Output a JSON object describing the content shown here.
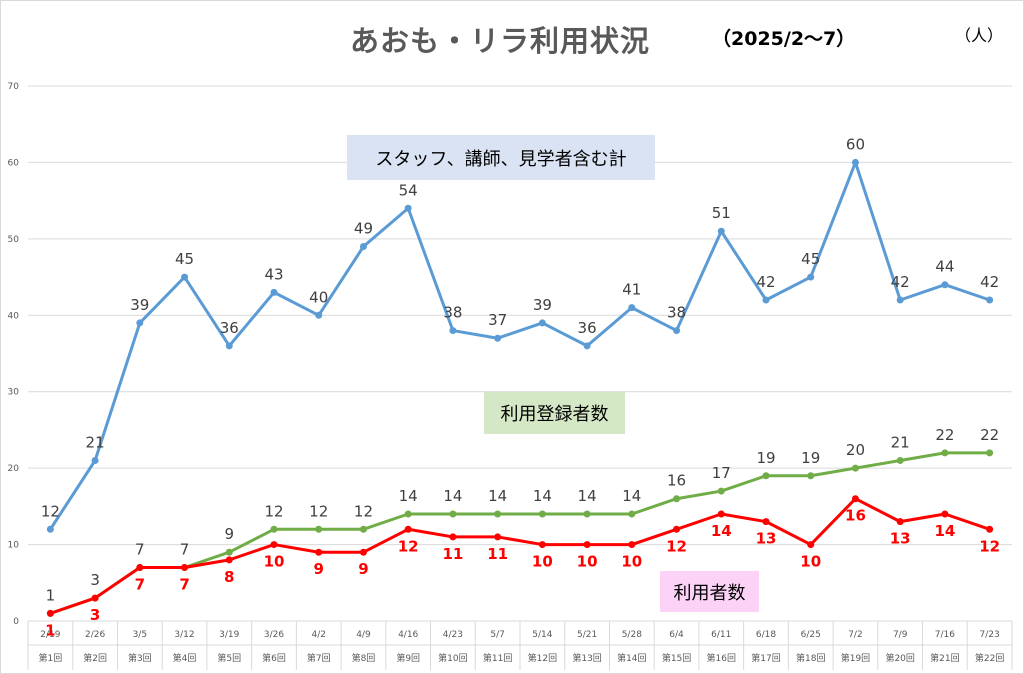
{
  "title": "あおも・リラ利用状況",
  "period": "（2025/2～7）",
  "unit": "（人）",
  "chart_data": {
    "type": "line",
    "categories": [
      "2/19",
      "2/26",
      "3/5",
      "3/12",
      "3/19",
      "3/26",
      "4/2",
      "4/9",
      "4/16",
      "4/23",
      "5/7",
      "5/14",
      "5/21",
      "5/28",
      "6/4",
      "6/11",
      "6/18",
      "6/25",
      "7/2",
      "7/9",
      "7/16",
      "7/23"
    ],
    "rounds": [
      "第1回",
      "第2回",
      "第3回",
      "第4回",
      "第5回",
      "第6回",
      "第7回",
      "第8回",
      "第9回",
      "第10回",
      "第11回",
      "第12回",
      "第13回",
      "第14回",
      "第15回",
      "第16回",
      "第17回",
      "第18回",
      "第19回",
      "第20回",
      "第21回",
      "第22回"
    ],
    "ylim": [
      0,
      70
    ],
    "yticks": [
      0,
      10,
      20,
      30,
      40,
      50,
      60,
      70
    ],
    "grid": true,
    "series": [
      {
        "name": "スタッフ、講師、見学者含む計",
        "color": "#5b9bd5",
        "label_color": "#404040",
        "label_bold": false,
        "values": [
          12,
          21,
          39,
          45,
          36,
          43,
          40,
          49,
          54,
          38,
          37,
          39,
          36,
          41,
          38,
          51,
          42,
          45,
          60,
          42,
          44,
          42
        ]
      },
      {
        "name": "利用登録者数",
        "color": "#70ad47",
        "label_color": "#404040",
        "label_bold": false,
        "values": [
          1,
          3,
          7,
          7,
          9,
          12,
          12,
          12,
          14,
          14,
          14,
          14,
          14,
          14,
          16,
          17,
          19,
          19,
          20,
          21,
          22,
          22
        ]
      },
      {
        "name": "利用者数",
        "color": "#ff0000",
        "label_color": "#ff0000",
        "label_bold": true,
        "values": [
          1,
          3,
          7,
          7,
          8,
          10,
          9,
          9,
          12,
          11,
          11,
          10,
          10,
          10,
          12,
          14,
          13,
          10,
          16,
          13,
          14,
          12
        ]
      }
    ]
  }
}
